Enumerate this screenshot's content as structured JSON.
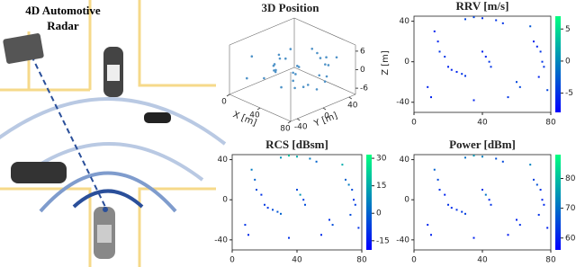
{
  "figure_title": "4D Automotive Radar",
  "chart_data": [
    {
      "type": "scatter3d",
      "title": "3D Position",
      "xlabel": "X [m]",
      "ylabel": "Y [m]",
      "zlabel": "Z [m]",
      "xlim": [
        0,
        80
      ],
      "ylim": [
        -50,
        50
      ],
      "zlim": [
        -8,
        8
      ],
      "xticks": [
        0,
        40,
        80
      ],
      "yticks": [
        -40,
        0,
        40
      ],
      "zticks": [
        -6,
        0,
        6
      ],
      "color": "#4f93c8",
      "x": [
        12,
        14,
        15,
        18,
        20,
        22,
        25,
        28,
        30,
        8,
        10,
        30,
        35,
        40,
        48,
        52,
        40,
        42,
        44,
        45,
        60,
        62,
        70,
        72,
        74,
        75,
        76,
        73,
        78,
        68,
        55,
        35
      ],
      "y": [
        30,
        20,
        10,
        5,
        -5,
        -8,
        -10,
        -12,
        -14,
        -25,
        -35,
        42,
        44,
        43,
        41,
        38,
        10,
        5,
        0,
        -5,
        -20,
        -25,
        20,
        15,
        10,
        0,
        -5,
        -15,
        -28,
        35,
        -35,
        -38
      ],
      "z": [
        1,
        -1,
        0,
        2,
        -2,
        0,
        1,
        -1,
        0,
        3,
        -3,
        2,
        1,
        0,
        -1,
        2,
        0,
        1,
        -1,
        0,
        -2,
        1,
        3,
        0,
        -1,
        2,
        -2,
        0,
        1,
        4,
        -1,
        0
      ]
    },
    {
      "type": "scatter",
      "title": "RRV [m/s]",
      "xlim": [
        0,
        80
      ],
      "ylim": [
        -50,
        45
      ],
      "xticks": [
        0,
        40,
        80
      ],
      "yticks": [
        -40,
        0,
        40
      ],
      "clim": [
        -8,
        7
      ],
      "cticks": [
        -5,
        0,
        5
      ],
      "colormap": [
        "#0000ff",
        "#00ff80"
      ],
      "x": [
        12,
        14,
        15,
        18,
        20,
        22,
        25,
        28,
        30,
        8,
        10,
        30,
        35,
        40,
        48,
        52,
        40,
        42,
        44,
        45,
        60,
        62,
        70,
        72,
        74,
        75,
        76,
        73,
        78,
        68,
        55,
        35
      ],
      "y": [
        30,
        20,
        10,
        5,
        -5,
        -8,
        -10,
        -12,
        -14,
        -25,
        -35,
        42,
        44,
        43,
        41,
        38,
        10,
        5,
        0,
        -5,
        -20,
        -25,
        20,
        15,
        10,
        0,
        -5,
        -15,
        -28,
        35,
        -35,
        -38
      ],
      "c": [
        -6,
        -6,
        -5,
        -5,
        -6,
        -6,
        -6,
        -5,
        -5,
        -6,
        -6,
        -4,
        -4,
        -5,
        -5,
        -5,
        -6,
        -6,
        -5,
        -5,
        -4,
        -4,
        -6,
        -6,
        -5,
        -5,
        -5,
        -6,
        -4,
        -3,
        -5,
        -6
      ]
    },
    {
      "type": "scatter",
      "title": "RCS [dBsm]",
      "xlim": [
        0,
        80
      ],
      "ylim": [
        -50,
        45
      ],
      "xticks": [
        0,
        40,
        80
      ],
      "yticks": [
        -40,
        0,
        40
      ],
      "clim": [
        -20,
        32
      ],
      "cticks": [
        -15,
        0,
        15,
        30
      ],
      "colormap": [
        "#0000ff",
        "#00ff80"
      ],
      "x": [
        12,
        14,
        15,
        18,
        20,
        22,
        25,
        28,
        30,
        8,
        10,
        30,
        35,
        40,
        48,
        52,
        40,
        42,
        44,
        45,
        60,
        62,
        70,
        72,
        74,
        75,
        76,
        73,
        78,
        68,
        55,
        35
      ],
      "y": [
        30,
        20,
        10,
        5,
        -5,
        -8,
        -10,
        -12,
        -14,
        -25,
        -35,
        42,
        44,
        43,
        41,
        38,
        10,
        5,
        0,
        -5,
        -20,
        -25,
        20,
        15,
        10,
        0,
        -5,
        -15,
        -28,
        35,
        -35,
        -38
      ],
      "c": [
        5,
        0,
        -5,
        -10,
        -8,
        -10,
        -5,
        -3,
        0,
        -10,
        -12,
        10,
        20,
        15,
        5,
        0,
        -5,
        10,
        -8,
        -5,
        -10,
        -5,
        0,
        5,
        -5,
        -10,
        -8,
        -5,
        -10,
        15,
        -12,
        -10
      ]
    },
    {
      "type": "scatter",
      "title": "Power [dBm]",
      "xlim": [
        0,
        80
      ],
      "ylim": [
        -50,
        45
      ],
      "xticks": [
        0,
        40,
        80
      ],
      "yticks": [
        -40,
        0,
        40
      ],
      "clim": [
        56,
        88
      ],
      "cticks": [
        60,
        70,
        80
      ],
      "colormap": [
        "#0000ff",
        "#00ff80"
      ],
      "x": [
        12,
        14,
        15,
        18,
        20,
        22,
        25,
        28,
        30,
        8,
        10,
        30,
        35,
        40,
        48,
        52,
        40,
        42,
        44,
        45,
        60,
        62,
        70,
        72,
        74,
        75,
        76,
        73,
        78,
        68,
        55,
        35
      ],
      "y": [
        30,
        20,
        10,
        5,
        -5,
        -8,
        -10,
        -12,
        -14,
        -25,
        -35,
        42,
        44,
        43,
        41,
        38,
        10,
        5,
        0,
        -5,
        -20,
        -25,
        20,
        15,
        10,
        0,
        -5,
        -15,
        -28,
        35,
        -35,
        -38
      ],
      "c": [
        68,
        65,
        62,
        60,
        62,
        61,
        62,
        63,
        64,
        60,
        60,
        70,
        75,
        72,
        66,
        65,
        62,
        70,
        61,
        62,
        60,
        62,
        64,
        66,
        62,
        60,
        61,
        62,
        60,
        72,
        59,
        60
      ]
    }
  ]
}
